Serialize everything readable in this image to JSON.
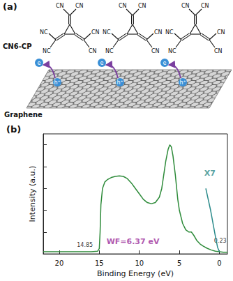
{
  "panel_a": {
    "label": "(a)",
    "molecule_name": "CN6-CP",
    "substrate": "Graphene",
    "molecule_labels": [
      "CN",
      "CN",
      "NC",
      "CN",
      "NC",
      "CN"
    ],
    "molecule_count": 3,
    "electron": "e",
    "hole": "h⁺"
  },
  "chart_data": {
    "type": "line",
    "title": "(b)",
    "x_label": "Binding Energy (eV)",
    "y_label": "Intensity (a.u.)",
    "xlim": [
      22,
      -1
    ],
    "xticks": [
      20,
      15,
      10,
      5,
      0
    ],
    "ylim": [
      0,
      1.1
    ],
    "yticks": [
      0,
      0.2,
      0.4,
      0.6,
      0.8,
      1.0
    ],
    "tick_labels": "x",
    "grid": false,
    "series": [
      {
        "color": "#2e8b3a",
        "x": [
          22,
          20,
          18,
          16,
          15.2,
          15.0,
          14.9,
          14.8,
          14.6,
          14.3,
          14,
          13.5,
          13,
          12.5,
          12,
          11.5,
          11,
          10.5,
          10,
          9.5,
          9,
          8.5,
          8,
          7.5,
          7.2,
          7,
          6.7,
          6.4,
          6.2,
          6.0,
          5.8,
          5.5,
          5.2,
          5,
          4.6,
          4.2,
          3.8,
          3.5,
          3.2,
          2.8,
          2.4,
          2,
          1.5,
          1,
          0.5,
          0,
          -0.5,
          -1
        ],
        "values": [
          0.02,
          0.02,
          0.02,
          0.02,
          0.025,
          0.05,
          0.2,
          0.45,
          0.6,
          0.66,
          0.68,
          0.7,
          0.71,
          0.715,
          0.71,
          0.69,
          0.65,
          0.6,
          0.55,
          0.5,
          0.47,
          0.46,
          0.47,
          0.52,
          0.6,
          0.7,
          0.85,
          0.96,
          1.0,
          0.98,
          0.9,
          0.72,
          0.5,
          0.4,
          0.28,
          0.22,
          0.2,
          0.2,
          0.17,
          0.12,
          0.09,
          0.07,
          0.05,
          0.035,
          0.025,
          0.02,
          0.015,
          0.015
        ]
      },
      {
        "color": "#2a8a8a",
        "x": [
          1.7,
          1.4,
          1.1,
          0.8,
          0.5,
          0.23,
          0
        ],
        "values": [
          0.6,
          0.5,
          0.4,
          0.28,
          0.16,
          0.06,
          0.02
        ]
      }
    ],
    "annotations": [
      {
        "text": "14.85",
        "x": 16.8,
        "y": 0.08,
        "color": "#000000"
      },
      {
        "text": "WF=6.37 eV",
        "x": 10.8,
        "y": 0.11,
        "color": "#9b2d9b"
      },
      {
        "text": "X7",
        "x": 1.2,
        "y": 0.74,
        "color": "#2a8a8a"
      },
      {
        "text": "0.23",
        "x": -0.1,
        "y": 0.12,
        "color": "#000000"
      }
    ]
  }
}
